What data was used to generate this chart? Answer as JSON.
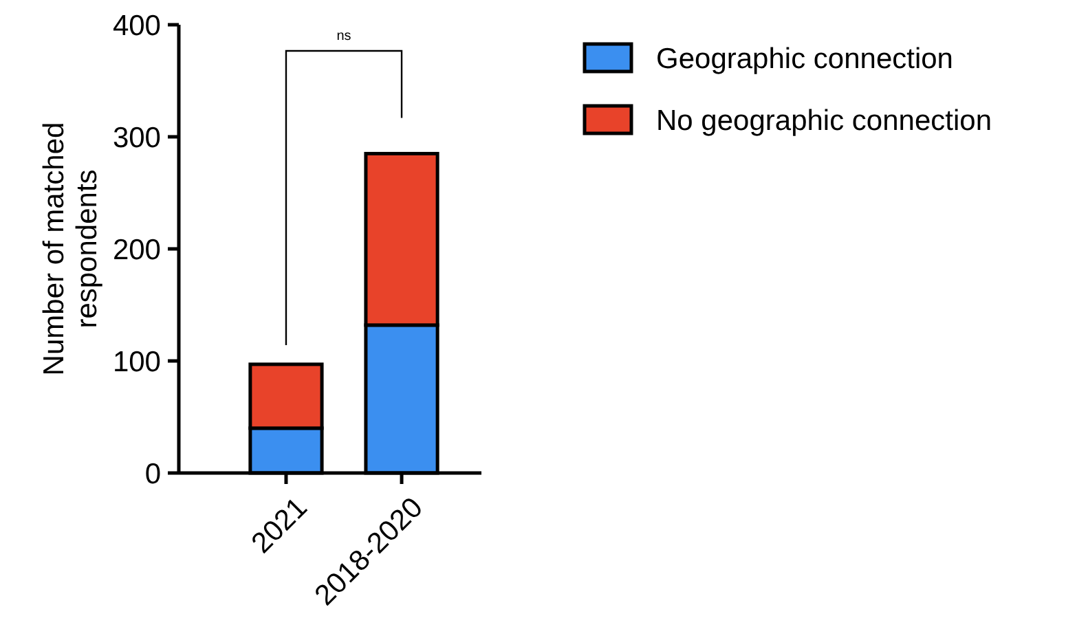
{
  "chart_data": {
    "type": "bar",
    "stacked": true,
    "ylabel": "Number of matched respondents",
    "categories": [
      "2021",
      "2018-2020"
    ],
    "series": [
      {
        "name": "Geographic connection",
        "color": "#3b8ff0",
        "values": [
          40,
          132
        ]
      },
      {
        "name": "No geographic connection",
        "color": "#e8432a",
        "values": [
          57,
          153
        ]
      }
    ],
    "ylim": [
      0,
      400
    ],
    "yticks": [
      0,
      100,
      200,
      300,
      400
    ],
    "grid": false,
    "legend": "top right",
    "annotations": [
      "ns"
    ]
  }
}
